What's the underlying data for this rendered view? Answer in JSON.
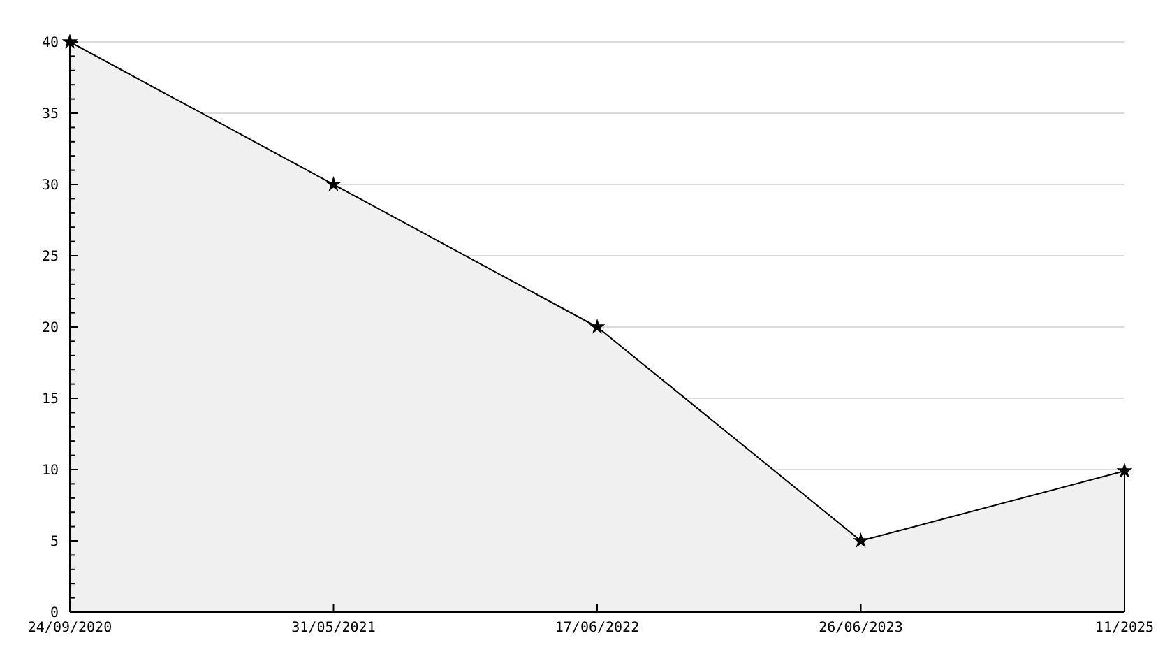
{
  "chart_data": {
    "type": "area",
    "categories": [
      "24/09/2020",
      "31/05/2021",
      "17/06/2022",
      "26/06/2023",
      "11/2025"
    ],
    "series": [
      {
        "color": "#f0f0f0",
        "values": [
          40,
          30,
          20,
          5,
          9.9
        ]
      }
    ],
    "ylim": [
      0,
      40
    ],
    "yticks": [
      0,
      {
        "value": 1,
        "label": null
      },
      {
        "value": 2,
        "label": null
      },
      {
        "value": 3,
        "label": null
      },
      {
        "value": 4,
        "label": null
      },
      5,
      {
        "value": 6,
        "label": null
      },
      {
        "value": 7,
        "label": null
      },
      {
        "value": 8,
        "label": null
      },
      {
        "value": 9,
        "label": null
      },
      10,
      {
        "value": 11,
        "label": null
      },
      {
        "value": 12,
        "label": null
      },
      {
        "value": 13,
        "label": null
      },
      {
        "value": 14,
        "label": null
      },
      15,
      {
        "value": 16,
        "label": null
      },
      {
        "value": 17,
        "label": null
      },
      {
        "value": 18,
        "label": null
      },
      {
        "value": 19,
        "label": null
      },
      20,
      {
        "value": 21,
        "label": null
      },
      {
        "value": 22,
        "label": null
      },
      {
        "value": 23,
        "label": null
      },
      {
        "value": 24,
        "label": null
      },
      25,
      {
        "value": 26,
        "label": null
      },
      {
        "value": 27,
        "label": null
      },
      {
        "value": 28,
        "label": null
      },
      {
        "value": 29,
        "label": null
      },
      30,
      {
        "value": 31,
        "label": null
      },
      {
        "value": 32,
        "label": null
      },
      {
        "value": 33,
        "label": null
      },
      {
        "value": 34,
        "label": null
      },
      35,
      {
        "value": 36,
        "label": null
      },
      {
        "value": 37,
        "label": null
      },
      {
        "value": 38,
        "label": null
      },
      {
        "value": 39,
        "label": null
      },
      40
    ],
    "grid": "y",
    "marker": "star"
  }
}
